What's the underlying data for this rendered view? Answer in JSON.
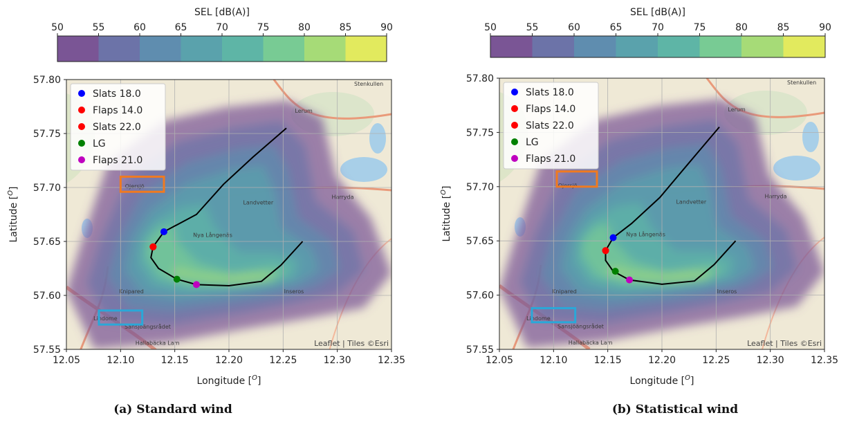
{
  "colorbar": {
    "label": "SEL [dB(A)]",
    "ticks": [
      50,
      55,
      60,
      65,
      70,
      75,
      80,
      85,
      90
    ],
    "colors": [
      "#7a5595",
      "#6c73a8",
      "#5f8daf",
      "#5aa2ac",
      "#5eb5a6",
      "#78cb94",
      "#a6db77",
      "#e2ea5e"
    ]
  },
  "map_labels": {
    "places": [
      "Lerum",
      "Landvetter",
      "Nya Långenäs",
      "Knipared",
      "Inseros",
      "Harryda",
      "Ojersjö",
      "Lindome",
      "Sansjöängsrådet",
      "Stenkullen",
      "Hallabäcka Lam"
    ],
    "attribution": "Leaflet | Tiles ©Esri"
  },
  "chart_data": [
    {
      "type": "scatter",
      "caption": "(a) Standard wind",
      "xlabel": "Longitude [O]",
      "ylabel": "Latitude [O]",
      "xlim": [
        12.05,
        12.35
      ],
      "ylim": [
        57.55,
        57.8
      ],
      "xticks": [
        "12.05",
        "12.10",
        "12.15",
        "12.20",
        "12.25",
        "12.30",
        "12.35"
      ],
      "yticks": [
        "57.55",
        "57.60",
        "57.65",
        "57.70",
        "57.75",
        "57.80"
      ],
      "grid": true,
      "legend_position": "upper-left",
      "track": [
        [
          12.253,
          57.755
        ],
        [
          12.222,
          57.728
        ],
        [
          12.195,
          57.703
        ],
        [
          12.17,
          57.675
        ],
        [
          12.14,
          57.659
        ],
        [
          12.13,
          57.645
        ],
        [
          12.128,
          57.635
        ],
        [
          12.135,
          57.625
        ],
        [
          12.152,
          57.615
        ],
        [
          12.17,
          57.61
        ],
        [
          12.2,
          57.609
        ],
        [
          12.23,
          57.613
        ],
        [
          12.248,
          57.628
        ],
        [
          12.268,
          57.65
        ]
      ],
      "series": [
        {
          "name": "Slats 18.0",
          "color": "#0000ff",
          "x": 12.14,
          "y": 57.659
        },
        {
          "name": "Flaps 14.0",
          "color": "#ff0000",
          "x": 12.13,
          "y": 57.645
        },
        {
          "name": "Slats 22.0",
          "color": "#ff0000",
          "x": 12.13,
          "y": 57.645
        },
        {
          "name": "LG",
          "color": "#008000",
          "x": 12.152,
          "y": 57.615
        },
        {
          "name": "Flaps 21.0",
          "color": "#bf00bf",
          "x": 12.17,
          "y": 57.61
        }
      ],
      "boxes": [
        {
          "color": "#f07a20",
          "xlim": [
            12.1,
            12.14
          ],
          "ylim": [
            57.696,
            57.71
          ]
        },
        {
          "color": "#2aa8d8",
          "xlim": [
            12.08,
            12.12
          ],
          "ylim": [
            57.573,
            57.586
          ]
        }
      ]
    },
    {
      "type": "scatter",
      "caption": "(b) Statistical wind",
      "xlabel": "Longitude [O]",
      "ylabel": "Latitude [O]",
      "xlim": [
        12.05,
        12.35
      ],
      "ylim": [
        57.55,
        57.8
      ],
      "xticks": [
        "12.05",
        "12.10",
        "12.15",
        "12.20",
        "12.25",
        "12.30",
        "12.35"
      ],
      "yticks": [
        "57.55",
        "57.60",
        "57.65",
        "57.70",
        "57.75",
        "57.80"
      ],
      "grid": true,
      "legend_position": "upper-left",
      "track": [
        [
          12.253,
          57.755
        ],
        [
          12.225,
          57.722
        ],
        [
          12.198,
          57.69
        ],
        [
          12.172,
          57.666
        ],
        [
          12.155,
          57.653
        ],
        [
          12.148,
          57.641
        ],
        [
          12.148,
          57.632
        ],
        [
          12.155,
          57.622
        ],
        [
          12.17,
          57.614
        ],
        [
          12.2,
          57.61
        ],
        [
          12.23,
          57.613
        ],
        [
          12.248,
          57.628
        ],
        [
          12.268,
          57.65
        ]
      ],
      "series": [
        {
          "name": "Slats 18.0",
          "color": "#0000ff",
          "x": 12.155,
          "y": 57.653
        },
        {
          "name": "Flaps 14.0",
          "color": "#ff0000",
          "x": 12.148,
          "y": 57.641
        },
        {
          "name": "Slats 22.0",
          "color": "#ff0000",
          "x": 12.148,
          "y": 57.641
        },
        {
          "name": "LG",
          "color": "#008000",
          "x": 12.157,
          "y": 57.622
        },
        {
          "name": "Flaps 21.0",
          "color": "#bf00bf",
          "x": 12.17,
          "y": 57.614
        }
      ],
      "boxes": [
        {
          "color": "#f07a20",
          "xlim": [
            12.103,
            12.14
          ],
          "ylim": [
            57.7,
            57.714
          ]
        },
        {
          "color": "#2aa8d8",
          "xlim": [
            12.08,
            12.12
          ],
          "ylim": [
            57.575,
            57.588
          ]
        }
      ]
    }
  ]
}
